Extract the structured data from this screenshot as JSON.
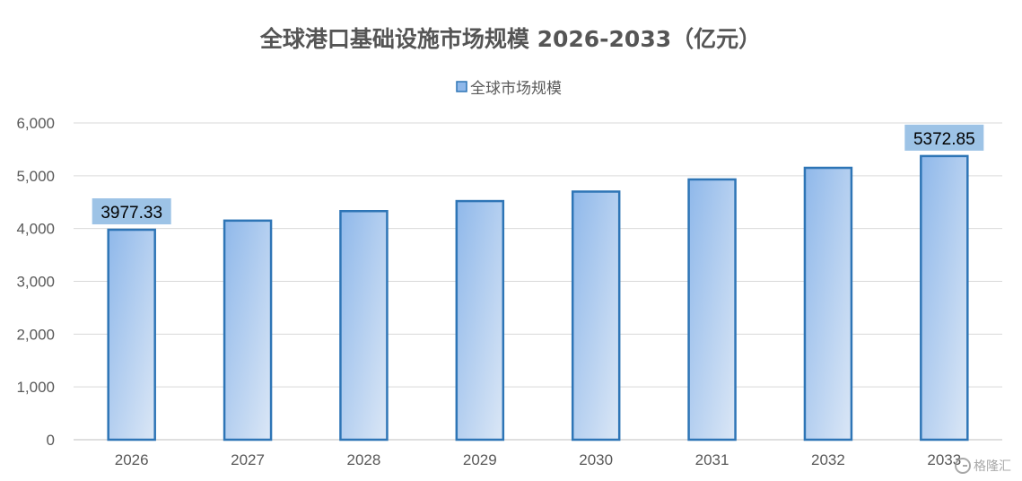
{
  "chart_data": {
    "type": "bar",
    "title": "全球港口基础设施市场规模 2026-2033（亿元）",
    "categories": [
      "2026",
      "2027",
      "2028",
      "2029",
      "2030",
      "2031",
      "2032",
      "2033"
    ],
    "series": [
      {
        "name": "全球市场规模",
        "values": [
          3977.33,
          4150,
          4330,
          4520,
          4700,
          4930,
          5150,
          5372.85
        ]
      }
    ],
    "data_labels": [
      {
        "index": 0,
        "text": "3977.33"
      },
      {
        "index": 7,
        "text": "5372.85"
      }
    ],
    "yticks": [
      "0",
      "1,000",
      "2,000",
      "3,000",
      "4,000",
      "5,000",
      "6,000"
    ],
    "ylim": [
      0,
      6000
    ],
    "xlabel": "",
    "ylabel": "",
    "grid": true,
    "legend_position": "top",
    "colors": {
      "bar_fill_top": "#8fb8ea",
      "bar_fill_bottom": "#dbe7f6",
      "bar_stroke": "#2e75b6",
      "label_background": "#9dc3e6",
      "gridline": "#d9d9d9",
      "axis_line": "#bfbfbf"
    }
  },
  "watermark": {
    "icon": "gelonghui-logo-icon",
    "text": "格隆汇"
  }
}
